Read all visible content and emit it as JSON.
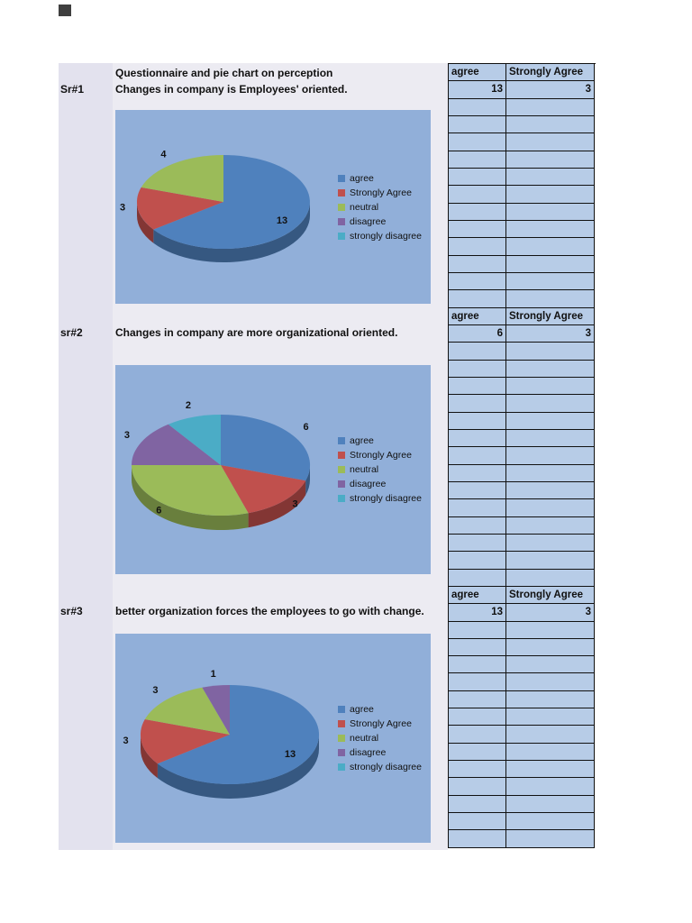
{
  "page": {
    "title_header": "Questionnaire and pie chart on perception"
  },
  "colors": {
    "chart_background": "#91afd9",
    "table_cell_background": "#b7cce7",
    "left_strip_background": "#e3e2ee",
    "main_column_background": "#ecebf2",
    "series_agree": "#4F81BD",
    "series_strongly_agree": "#C0504D",
    "series_neutral": "#9BBB59",
    "series_disagree": "#8064A2",
    "series_strongly_disagree": "#4BACC6"
  },
  "sections": [
    {
      "sr": "Sr#1",
      "question": "Changes in company is Employees' oriented.",
      "table": {
        "headers": [
          "agree",
          "Strongly Agree"
        ],
        "values": [
          "13",
          "3"
        ],
        "empty_rows": 12
      }
    },
    {
      "sr": "sr#2",
      "question": "Changes in company are more organizational oriented.",
      "table": {
        "headers": [
          "agree",
          "Strongly Agree"
        ],
        "values": [
          "6",
          "3"
        ],
        "empty_rows": 14
      }
    },
    {
      "sr": "sr#3",
      "question": "better organization forces the employees to go with change.",
      "table": {
        "headers": [
          "agree",
          "Strongly Agree"
        ],
        "values": [
          "13",
          "3"
        ],
        "empty_rows": 13
      }
    }
  ],
  "chart_data": [
    {
      "type": "pie",
      "style": "3d",
      "title": "",
      "categories": [
        "agree",
        "Strongly Agree",
        "neutral",
        "disagree",
        "strongly disagree"
      ],
      "values": [
        13,
        3,
        4,
        0,
        0
      ],
      "colors": [
        "#4F81BD",
        "#C0504D",
        "#9BBB59",
        "#8064A2",
        "#4BACC6"
      ],
      "data_labels_visible": [
        13,
        3,
        4
      ],
      "legend_position": "right"
    },
    {
      "type": "pie",
      "style": "3d",
      "title": "",
      "categories": [
        "agree",
        "Strongly Agree",
        "neutral",
        "disagree",
        "strongly disagree"
      ],
      "values": [
        6,
        3,
        6,
        3,
        2
      ],
      "colors": [
        "#4F81BD",
        "#C0504D",
        "#9BBB59",
        "#8064A2",
        "#4BACC6"
      ],
      "data_labels_visible": [
        6,
        3,
        6,
        3,
        2
      ],
      "legend_position": "right"
    },
    {
      "type": "pie",
      "style": "3d",
      "title": "",
      "categories": [
        "agree",
        "Strongly Agree",
        "neutral",
        "disagree",
        "strongly disagree"
      ],
      "values": [
        13,
        3,
        3,
        1,
        0
      ],
      "colors": [
        "#4F81BD",
        "#C0504D",
        "#9BBB59",
        "#8064A2",
        "#4BACC6"
      ],
      "data_labels_visible": [
        13,
        3,
        3,
        1
      ],
      "legend_position": "right"
    }
  ]
}
